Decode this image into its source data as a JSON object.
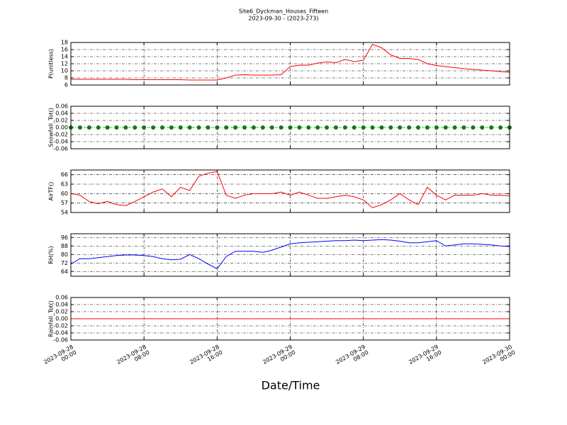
{
  "title": "Site6_Dyckman_Houses_Fifteen",
  "subtitle": "2023-09-30 - (2023-273)",
  "xlabel": "Date/Time",
  "xlim": [
    "2023-09-28 00:00",
    "2023-09-30 00:00"
  ],
  "xticks": [
    {
      "value": "2023-09-28 00:00",
      "label": "2023-09-28\n00:00"
    },
    {
      "value": "2023-09-28 08:00",
      "label": "2023-09-28\n08:00"
    },
    {
      "value": "2023-09-28 16:00",
      "label": "2023-09-28\n16:00"
    },
    {
      "value": "2023-09-29 00:00",
      "label": "2023-09-29\n00:00"
    },
    {
      "value": "2023-09-29 08:00",
      "label": "2023-09-29\n08:00"
    },
    {
      "value": "2023-09-29 16:00",
      "label": "2023-09-29\n16:00"
    },
    {
      "value": "2023-09-30 00:00",
      "label": "2023-09-30\n00:00"
    }
  ],
  "grid": true,
  "x": [
    "2023-09-28 00:00",
    "2023-09-28 01:00",
    "2023-09-28 02:00",
    "2023-09-28 03:00",
    "2023-09-28 04:00",
    "2023-09-28 05:00",
    "2023-09-28 06:00",
    "2023-09-28 07:00",
    "2023-09-28 08:00",
    "2023-09-28 09:00",
    "2023-09-28 10:00",
    "2023-09-28 11:00",
    "2023-09-28 12:00",
    "2023-09-28 13:00",
    "2023-09-28 14:00",
    "2023-09-28 15:00",
    "2023-09-28 16:00",
    "2023-09-28 17:00",
    "2023-09-28 18:00",
    "2023-09-28 19:00",
    "2023-09-28 20:00",
    "2023-09-28 21:00",
    "2023-09-28 22:00",
    "2023-09-28 23:00",
    "2023-09-29 00:00",
    "2023-09-29 01:00",
    "2023-09-29 02:00",
    "2023-09-29 03:00",
    "2023-09-29 04:00",
    "2023-09-29 05:00",
    "2023-09-29 06:00",
    "2023-09-29 07:00",
    "2023-09-29 08:00",
    "2023-09-29 09:00",
    "2023-09-29 10:00",
    "2023-09-29 11:00",
    "2023-09-29 12:00",
    "2023-09-29 13:00",
    "2023-09-29 14:00",
    "2023-09-29 15:00",
    "2023-09-29 16:00",
    "2023-09-29 17:00",
    "2023-09-29 18:00",
    "2023-09-29 19:00",
    "2023-09-29 20:00",
    "2023-09-29 21:00",
    "2023-09-29 22:00",
    "2023-09-29 23:00",
    "2023-09-30 00:00"
  ],
  "chart_data": [
    {
      "type": "line",
      "ylabel": "P(unitless)",
      "color": "#ff0000",
      "ylim": [
        6,
        18
      ],
      "yticks": [
        6,
        8,
        10,
        12,
        14,
        16,
        18
      ],
      "values": [
        7.6,
        7.6,
        7.6,
        7.6,
        7.6,
        7.6,
        7.6,
        7.5,
        7.5,
        7.5,
        7.5,
        7.5,
        7.5,
        7.4,
        7.4,
        7.4,
        7.4,
        8.0,
        8.8,
        8.9,
        8.8,
        8.8,
        8.8,
        8.9,
        11.2,
        11.6,
        11.6,
        12.2,
        12.5,
        12.3,
        13.2,
        12.6,
        13.0,
        17.5,
        16.5,
        14.5,
        13.5,
        13.5,
        13.2,
        12.0,
        11.5,
        11.2,
        10.9,
        10.6,
        10.4,
        10.2,
        10.0,
        9.8,
        9.6
      ]
    },
    {
      "type": "scatter",
      "ylabel": "Snowfall_Tot()",
      "color": "#008000",
      "ylim": [
        -0.06,
        0.06
      ],
      "yticks": [
        -0.06,
        -0.04,
        -0.02,
        {
          "value": 0,
          "label": "0.00"
        },
        0.02,
        0.04,
        0.06
      ],
      "values": [
        0,
        0,
        0,
        0,
        0,
        0,
        0,
        0,
        0,
        0,
        0,
        0,
        0,
        0,
        0,
        0,
        0,
        0,
        0,
        0,
        0,
        0,
        0,
        0,
        0,
        0,
        0,
        0,
        0,
        0,
        0,
        0,
        0,
        0,
        0,
        0,
        0,
        0,
        0,
        0,
        0,
        0,
        0,
        0,
        0,
        0,
        0,
        0,
        0
      ]
    },
    {
      "type": "line",
      "ylabel": "AirTF()",
      "color": "#ff0000",
      "ylim": [
        54,
        67.5
      ],
      "yticks": [
        54,
        57,
        60,
        63,
        66
      ],
      "values": [
        60,
        59.5,
        57.5,
        56.8,
        57.5,
        56.5,
        56.2,
        57.5,
        59,
        60.5,
        61.5,
        59,
        62,
        61,
        65.5,
        66.5,
        67,
        59.5,
        58.5,
        59.5,
        60,
        60,
        60,
        60.5,
        59.5,
        60.5,
        59.5,
        58.5,
        58.5,
        59,
        59.5,
        59,
        58,
        55.5,
        56.5,
        58,
        60,
        58,
        56.5,
        62,
        59.5,
        58,
        59.5,
        59.5,
        59.5,
        60,
        59.5,
        59.5,
        59.3
      ]
    },
    {
      "type": "line",
      "ylabel": "RH(%)",
      "color": "#0000ff",
      "ylim": [
        59.5,
        99.5
      ],
      "yticks": [
        64,
        72,
        80,
        88,
        96
      ],
      "values": [
        71,
        76,
        76,
        77,
        78,
        79,
        79.5,
        79.5,
        79,
        78,
        76,
        75,
        75.5,
        80,
        76,
        71,
        66.5,
        78,
        83,
        83,
        83,
        82,
        84,
        87,
        90,
        91,
        91.5,
        92,
        92.5,
        93,
        93,
        93.5,
        93,
        93.5,
        94,
        93.5,
        92.5,
        91,
        91,
        92,
        93,
        88,
        89,
        90,
        90,
        89.5,
        89,
        88,
        87.5
      ]
    },
    {
      "type": "line",
      "ylabel": "Rainfall_Tot()",
      "color": "#ff0000",
      "ylim": [
        -0.06,
        0.06
      ],
      "yticks": [
        -0.06,
        -0.04,
        -0.02,
        {
          "value": 0,
          "label": "0.00"
        },
        0.02,
        0.04,
        0.06
      ],
      "values": [
        0,
        0,
        0,
        0,
        0,
        0,
        0,
        0,
        0,
        0,
        0,
        0,
        0,
        0,
        0,
        0,
        0,
        0,
        0,
        0,
        0,
        0,
        0,
        0,
        0,
        0,
        0,
        0,
        0,
        0,
        0,
        0,
        0,
        0,
        0,
        0,
        0,
        0,
        0,
        0,
        0,
        0,
        0,
        0,
        0,
        0,
        0,
        0,
        0
      ]
    }
  ]
}
